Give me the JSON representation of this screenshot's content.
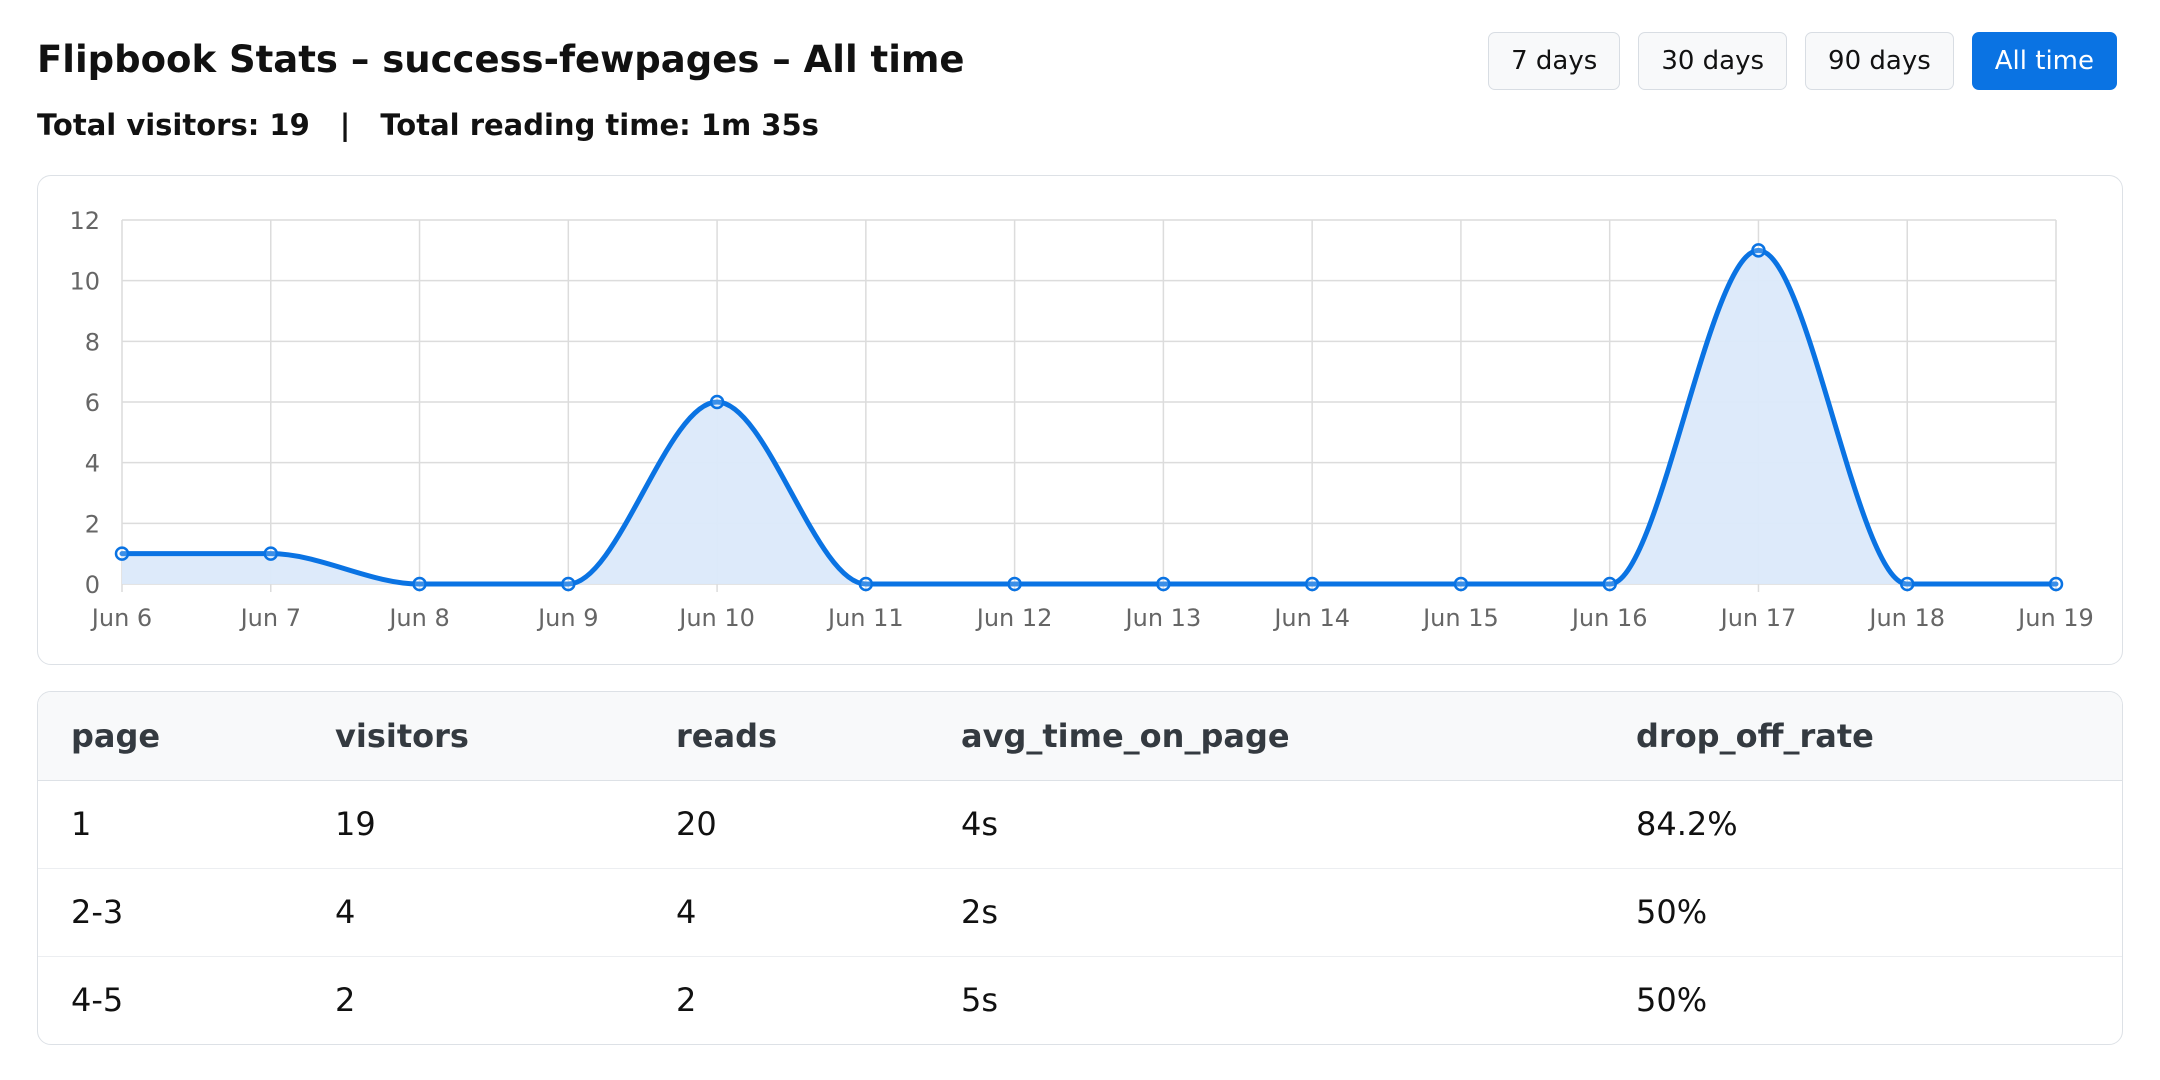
{
  "header": {
    "title": "Flipbook Stats – success-fewpages – All time"
  },
  "range_buttons": [
    {
      "label": "7 days",
      "active": false
    },
    {
      "label": "30 days",
      "active": false
    },
    {
      "label": "90 days",
      "active": false
    },
    {
      "label": "All time",
      "active": true
    }
  ],
  "summary": {
    "visitors": "Total visitors: 19",
    "separator": "|",
    "reading_time": "Total reading time: 1m 35s"
  },
  "colors": {
    "accent": "#0a73e3",
    "fill": "#dbe9fa",
    "grid": "#dcdcdc"
  },
  "chart_data": {
    "type": "area",
    "x": [
      "Jun 6",
      "Jun 7",
      "Jun 8",
      "Jun 9",
      "Jun 10",
      "Jun 11",
      "Jun 12",
      "Jun 13",
      "Jun 14",
      "Jun 15",
      "Jun 16",
      "Jun 17",
      "Jun 18",
      "Jun 19"
    ],
    "values": [
      1,
      1,
      0,
      0,
      6,
      0,
      0,
      0,
      0,
      0,
      0,
      11,
      0,
      0
    ],
    "yticks": [
      "0",
      "2",
      "4",
      "6",
      "8",
      "10",
      "12"
    ],
    "ylim": [
      0,
      12
    ],
    "grid": true,
    "legend": "none"
  },
  "table": {
    "columns": [
      "page",
      "visitors",
      "reads",
      "avg_time_on_page",
      "drop_off_rate"
    ],
    "rows": [
      [
        "1",
        "19",
        "20",
        "4s",
        "84.2%"
      ],
      [
        "2-3",
        "4",
        "4",
        "2s",
        "50%"
      ],
      [
        "4-5",
        "2",
        "2",
        "5s",
        "50%"
      ]
    ]
  }
}
